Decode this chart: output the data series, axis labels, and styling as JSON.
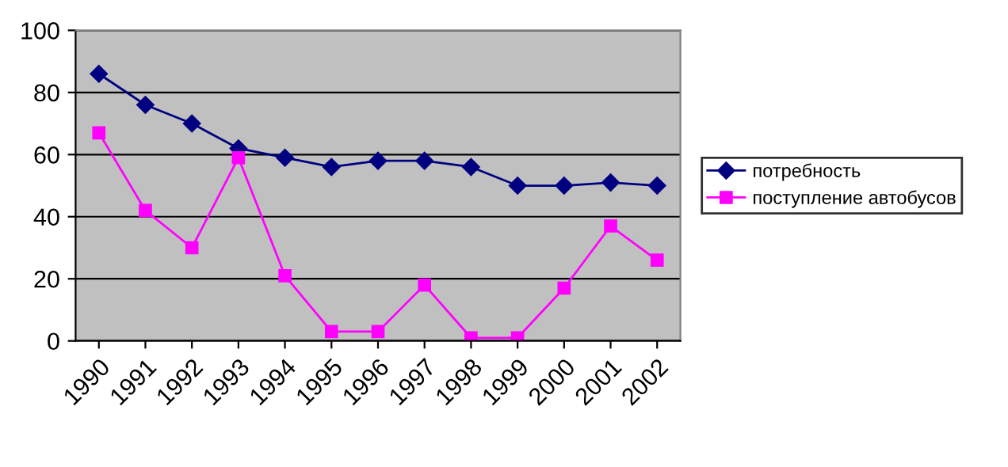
{
  "chart_data": {
    "type": "line",
    "categories": [
      "1990",
      "1991",
      "1992",
      "1993",
      "1994",
      "1995",
      "1996",
      "1997",
      "1998",
      "1999",
      "2000",
      "2001",
      "2002"
    ],
    "series": [
      {
        "name": "потребность",
        "color": "#000080",
        "marker": "diamond",
        "values": [
          86,
          76,
          70,
          62,
          59,
          56,
          58,
          58,
          56,
          50,
          50,
          51,
          50
        ]
      },
      {
        "name": "поступление автобусов",
        "color": "#ff00ff",
        "marker": "square",
        "values": [
          67,
          42,
          30,
          59,
          21,
          3,
          3,
          18,
          1,
          1,
          17,
          37,
          26
        ]
      }
    ],
    "ylim": [
      0,
      100
    ],
    "yticks": [
      0,
      20,
      40,
      60,
      80,
      100
    ],
    "grid": "y",
    "legend": "right"
  }
}
